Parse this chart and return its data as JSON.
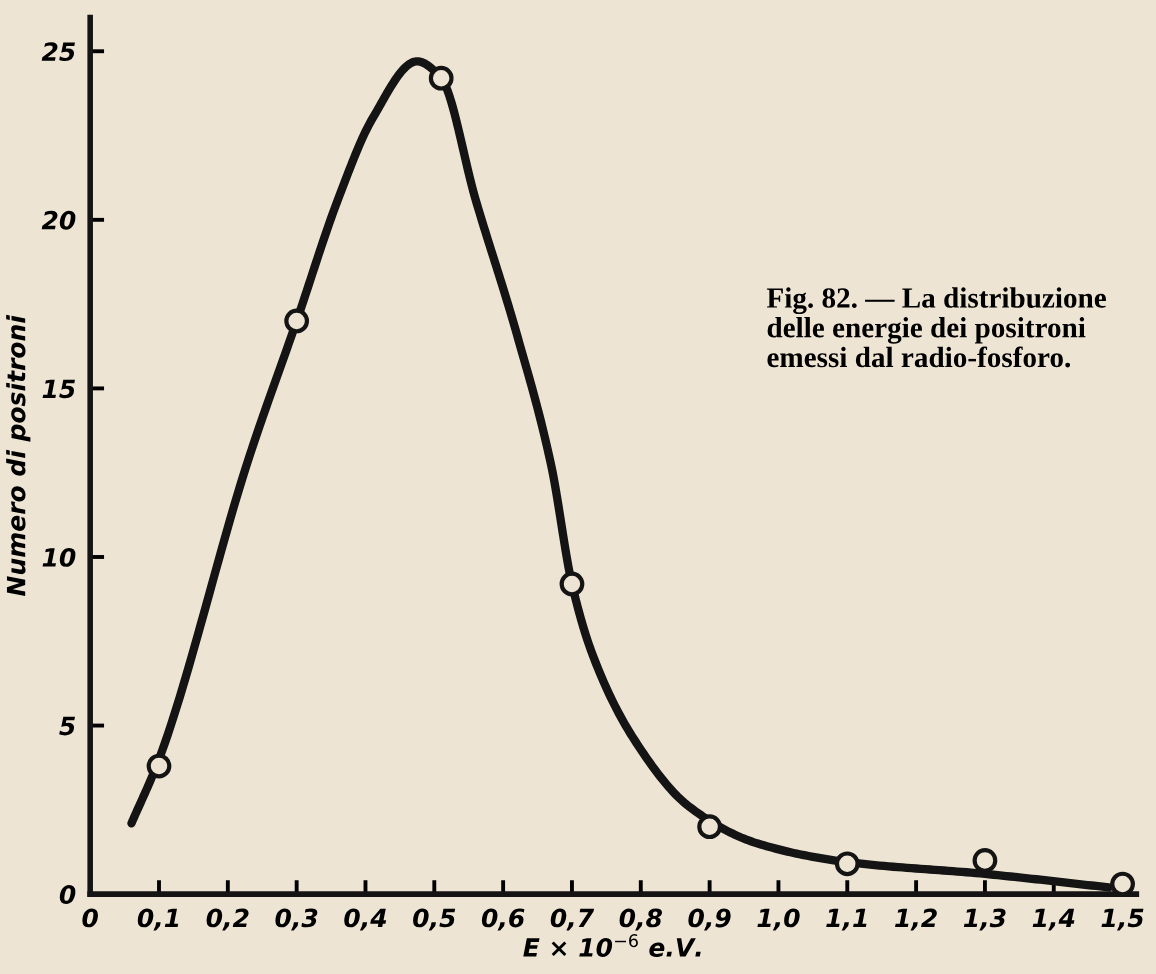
{
  "chart_data": {
    "type": "line",
    "xlabel": "E × 10$^{−6}$ e.V.",
    "ylabel": "Numero di positroni",
    "annotations": [
      "Fig. 82. — La distribuzione delle energie dei positroni emessi dal radio-fosforo."
    ],
    "xlim": [
      0,
      1.52
    ],
    "ylim": [
      0,
      26
    ],
    "xticks": [
      0,
      {
        "value": 0.1,
        "label": "0,1"
      },
      {
        "value": 0.2,
        "label": "0,2"
      },
      {
        "value": 0.3,
        "label": "0,3"
      },
      {
        "value": 0.4,
        "label": "0,4"
      },
      {
        "value": 0.5,
        "label": "0,5"
      },
      {
        "value": 0.6,
        "label": "0,6"
      },
      {
        "value": 0.7,
        "label": "0,7"
      },
      {
        "value": 0.8,
        "label": "0,8"
      },
      {
        "value": 0.9,
        "label": "0,9"
      },
      {
        "value": 1.0,
        "label": "1,0"
      },
      {
        "value": 1.1,
        "label": "1,1"
      },
      {
        "value": 1.2,
        "label": "1,2"
      },
      {
        "value": 1.3,
        "label": "1,3"
      },
      {
        "value": 1.4,
        "label": "1,4"
      },
      {
        "value": 1.5,
        "label": "1,5"
      }
    ],
    "yticks": [
      0,
      5,
      10,
      15,
      20,
      25
    ],
    "grid": false,
    "series": [
      {
        "color": "#141414",
        "line_style": "solid",
        "x": [
          0.06,
          0.1,
          0.23,
          0.3,
          0.36,
          0.41,
          0.475,
          0.51,
          0.56,
          0.62,
          0.67,
          0.7,
          0.73,
          0.79,
          0.87,
          0.97,
          1.1,
          1.3,
          1.48
        ],
        "values": [
          2.1,
          4.0,
          12.9,
          17.0,
          20.6,
          23.0,
          24.7,
          24.2,
          20.6,
          16.6,
          12.7,
          9.2,
          7.1,
          4.6,
          2.6,
          1.5,
          0.95,
          0.6,
          0.2
        ]
      },
      {
        "type": "scatter",
        "color": "#141414",
        "marker": "circle",
        "x": [
          0.1,
          0.3,
          0.51,
          0.7,
          0.9,
          1.1,
          1.3,
          1.5
        ],
        "values": [
          3.8,
          17.0,
          24.2,
          9.2,
          2.0,
          0.9,
          1.0,
          0.3
        ]
      }
    ]
  }
}
